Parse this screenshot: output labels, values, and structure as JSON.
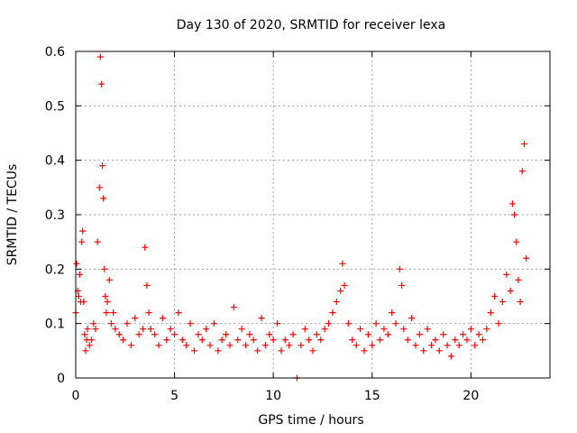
{
  "chart_data": {
    "type": "scatter",
    "title": "Day 130 of 2020, SRMTID for receiver lexa",
    "xlabel": "GPS time / hours",
    "ylabel": "SRMTID / TECUs",
    "xlim": [
      0,
      24
    ],
    "ylim": [
      0,
      0.6
    ],
    "xticks": [
      0,
      5,
      10,
      15,
      20
    ],
    "yticks": [
      0,
      0.1,
      0.2,
      0.3,
      0.4,
      0.5,
      0.6
    ],
    "xtick_labels": [
      "0",
      "5",
      "10",
      "15",
      "20"
    ],
    "ytick_labels": [
      "0",
      "0.1",
      "0.2",
      "0.3",
      "0.4",
      "0.5",
      "0.6"
    ],
    "grid": true,
    "marker": "plus",
    "color": "#ff0000",
    "series": [
      {
        "name": "SRMTID",
        "x": [
          0.0,
          0.05,
          0.1,
          0.15,
          0.2,
          0.25,
          0.3,
          0.35,
          0.4,
          0.45,
          0.5,
          0.55,
          0.6,
          0.7,
          0.8,
          0.9,
          1.0,
          1.1,
          1.2,
          1.25,
          1.3,
          1.35,
          1.4,
          1.45,
          1.5,
          1.55,
          1.6,
          1.7,
          1.8,
          1.9,
          2.0,
          2.2,
          2.4,
          2.6,
          2.8,
          3.0,
          3.2,
          3.4,
          3.5,
          3.6,
          3.7,
          3.8,
          4.0,
          4.2,
          4.4,
          4.6,
          4.8,
          5.0,
          5.2,
          5.4,
          5.6,
          5.8,
          6.0,
          6.2,
          6.4,
          6.6,
          6.8,
          7.0,
          7.2,
          7.4,
          7.6,
          7.8,
          8.0,
          8.2,
          8.4,
          8.6,
          8.8,
          9.0,
          9.2,
          9.4,
          9.6,
          9.8,
          10.0,
          10.2,
          10.4,
          10.6,
          10.8,
          11.0,
          11.2,
          11.4,
          11.6,
          11.8,
          12.0,
          12.2,
          12.4,
          12.6,
          12.8,
          13.0,
          13.2,
          13.4,
          13.5,
          13.6,
          13.8,
          14.0,
          14.2,
          14.4,
          14.6,
          14.8,
          15.0,
          15.2,
          15.4,
          15.6,
          15.8,
          16.0,
          16.2,
          16.4,
          16.5,
          16.6,
          16.8,
          17.0,
          17.2,
          17.4,
          17.6,
          17.8,
          18.0,
          18.2,
          18.4,
          18.6,
          18.8,
          19.0,
          19.2,
          19.4,
          19.6,
          19.8,
          20.0,
          20.2,
          20.4,
          20.6,
          20.8,
          21.0,
          21.2,
          21.4,
          21.6,
          21.8,
          22.0,
          22.1,
          22.2,
          22.3,
          22.4,
          22.5,
          22.6,
          22.7,
          22.8
        ],
        "y": [
          0.12,
          0.21,
          0.16,
          0.15,
          0.19,
          0.14,
          0.25,
          0.27,
          0.14,
          0.08,
          0.05,
          0.07,
          0.09,
          0.06,
          0.07,
          0.1,
          0.09,
          0.25,
          0.35,
          0.59,
          0.54,
          0.39,
          0.33,
          0.2,
          0.15,
          0.12,
          0.14,
          0.18,
          0.1,
          0.12,
          0.09,
          0.08,
          0.07,
          0.1,
          0.06,
          0.11,
          0.08,
          0.09,
          0.24,
          0.17,
          0.12,
          0.09,
          0.08,
          0.06,
          0.11,
          0.07,
          0.09,
          0.08,
          0.12,
          0.07,
          0.06,
          0.1,
          0.05,
          0.08,
          0.07,
          0.09,
          0.06,
          0.1,
          0.05,
          0.07,
          0.08,
          0.06,
          0.13,
          0.07,
          0.09,
          0.06,
          0.08,
          0.07,
          0.05,
          0.11,
          0.06,
          0.08,
          0.07,
          0.1,
          0.05,
          0.07,
          0.06,
          0.08,
          0.0,
          0.06,
          0.09,
          0.07,
          0.05,
          0.08,
          0.07,
          0.09,
          0.1,
          0.12,
          0.14,
          0.16,
          0.21,
          0.17,
          0.1,
          0.07,
          0.06,
          0.09,
          0.05,
          0.08,
          0.06,
          0.1,
          0.07,
          0.09,
          0.08,
          0.12,
          0.1,
          0.2,
          0.17,
          0.09,
          0.07,
          0.11,
          0.06,
          0.08,
          0.05,
          0.09,
          0.06,
          0.07,
          0.05,
          0.08,
          0.06,
          0.04,
          0.07,
          0.06,
          0.08,
          0.07,
          0.09,
          0.06,
          0.08,
          0.07,
          0.09,
          0.12,
          0.15,
          0.1,
          0.14,
          0.19,
          0.16,
          0.32,
          0.3,
          0.25,
          0.18,
          0.14,
          0.38,
          0.43,
          0.22
        ]
      }
    ]
  }
}
